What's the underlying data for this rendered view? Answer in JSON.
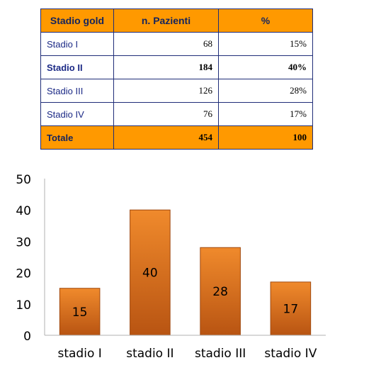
{
  "table": {
    "headers": [
      "Stadio gold",
      "n. Pazienti",
      "%"
    ],
    "rows": [
      {
        "stage": "Stadio I",
        "count": "68",
        "pct": "15%",
        "bold": false
      },
      {
        "stage": "Stadio II",
        "count": "184",
        "pct": "40%",
        "bold": true
      },
      {
        "stage": "Stadio III",
        "count": "126",
        "pct": "28%",
        "bold": false
      },
      {
        "stage": "Stadio IV",
        "count": "76",
        "pct": "17%",
        "bold": false
      }
    ],
    "total": {
      "stage": "Totale",
      "count": "454",
      "pct": "100"
    }
  },
  "chart_data": {
    "type": "bar",
    "categories": [
      "stadio I",
      "stadio II",
      "stadio III",
      "stadio IV"
    ],
    "values": [
      15,
      40,
      28,
      17
    ],
    "data_labels": [
      "15",
      "40",
      "28",
      "17"
    ],
    "yticks": [
      "0",
      "10",
      "20",
      "30",
      "40",
      "50"
    ],
    "ylim": [
      0,
      50
    ],
    "title": "",
    "xlabel": "",
    "ylabel": "",
    "grid": false,
    "legend": "none",
    "colors": {
      "bar_top": "#f08a2c",
      "bar_bottom": "#b85412",
      "bar_stroke": "#a0490f",
      "axis": "#b0b0b0",
      "text": "#000000"
    }
  }
}
